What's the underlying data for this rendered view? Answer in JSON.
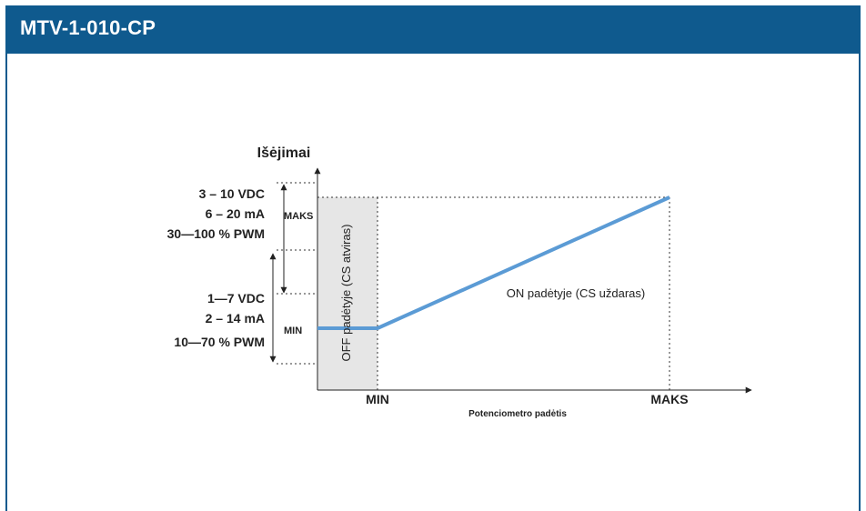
{
  "header": {
    "title": "MTV-1-010-CP"
  },
  "diagram": {
    "y_axis_title": "Išėjimai",
    "x_axis_title": "Potenciometro padėtis",
    "x_ticks": {
      "min": "MIN",
      "max": "MAKS"
    },
    "y_ticks": {
      "max": "MAKS",
      "min": "MIN"
    },
    "upper_range": [
      "3 – 10 VDC",
      "6 – 20 mA",
      "30—100 % PWM"
    ],
    "lower_range": [
      "1—7 VDC",
      "2 – 14 mA",
      "10—70 % PWM"
    ],
    "off_region_label": "OFF padėtyje (CS atviras)",
    "on_region_label": "ON padėtyje (CS uždaras)",
    "colors": {
      "header": "#0f5a8e",
      "line": "#5b9bd5",
      "off_region": "#e6e6e6"
    }
  }
}
